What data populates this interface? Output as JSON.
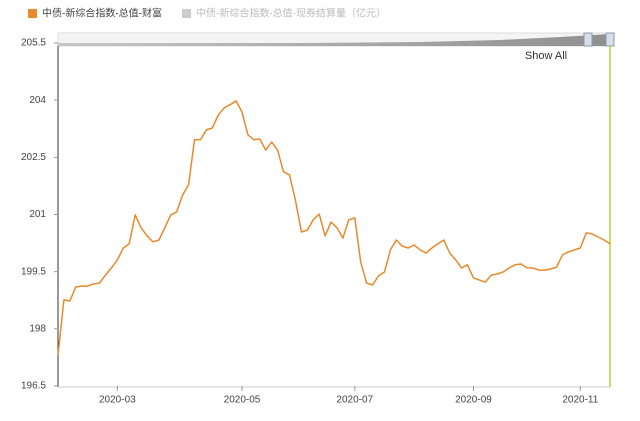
{
  "chart_data": {
    "type": "line",
    "series": [
      {
        "name": "中债-新综合指数-总值-财富",
        "color": "#e8892b",
        "visible": true,
        "values": [
          197.31,
          198.76,
          198.73,
          199.1,
          199.12,
          199.12,
          199.18,
          199.2,
          199.41,
          199.6,
          199.81,
          200.12,
          200.23,
          200.99,
          200.65,
          200.44,
          200.28,
          200.33,
          200.65,
          200.99,
          201.07,
          201.51,
          201.78,
          202.96,
          202.96,
          203.22,
          203.27,
          203.61,
          203.8,
          203.88,
          203.98,
          203.69,
          203.09,
          202.96,
          202.98,
          202.69,
          202.9,
          202.69,
          202.12,
          202.04,
          201.38,
          200.54,
          200.59,
          200.86,
          201.01,
          200.44,
          200.8,
          200.65,
          200.38,
          200.86,
          200.91,
          199.75,
          199.2,
          199.15,
          199.39,
          199.49,
          200.07,
          200.33,
          200.17,
          200.12,
          200.2,
          200.07,
          199.99,
          200.12,
          200.23,
          200.33,
          199.99,
          199.81,
          199.6,
          199.68,
          199.33,
          199.28,
          199.23,
          199.41,
          199.44,
          199.49,
          199.6,
          199.68,
          199.7,
          199.6,
          199.6,
          199.54,
          199.54,
          199.57,
          199.62,
          199.94,
          200.02,
          200.07,
          200.12,
          200.52,
          200.49,
          200.41,
          200.33,
          200.23
        ]
      },
      {
        "name": "中债-新综合指数-总值-现券结算量（亿元）",
        "color": "#cccccc",
        "visible": false
      }
    ],
    "categories": [
      null,
      null,
      null,
      null,
      null,
      null,
      null,
      null,
      null,
      null,
      "2020-03",
      null,
      null,
      null,
      null,
      null,
      null,
      null,
      null,
      null,
      null,
      null,
      null,
      null,
      null,
      null,
      null,
      null,
      null,
      null,
      null,
      "2020-05",
      null,
      null,
      null,
      null,
      null,
      null,
      null,
      null,
      null,
      null,
      null,
      null,
      null,
      null,
      null,
      null,
      null,
      null,
      "2020-07",
      null,
      null,
      null,
      null,
      null,
      null,
      null,
      null,
      null,
      null,
      null,
      null,
      null,
      null,
      null,
      null,
      null,
      null,
      null,
      "2020-09",
      null,
      null,
      null,
      null,
      null,
      null,
      null,
      null,
      null,
      null,
      null,
      null,
      null,
      null,
      null,
      null,
      null,
      "2020-11",
      null,
      null,
      null,
      null,
      null
    ],
    "ylim": [
      196.5,
      205.5
    ],
    "yticks": [
      196.5,
      198,
      199.5,
      201,
      202.5,
      204,
      205.5
    ],
    "grid": false,
    "show_all": "Show All"
  }
}
